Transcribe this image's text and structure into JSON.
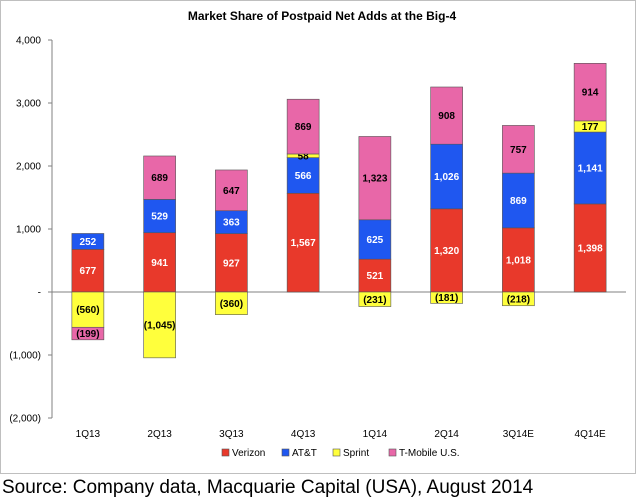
{
  "chart_data": {
    "type": "bar",
    "stacked": true,
    "title": "Market Share of Postpaid Net Adds at the Big-4",
    "categories": [
      "1Q13",
      "2Q13",
      "3Q13",
      "4Q13",
      "1Q14",
      "2Q14",
      "3Q14E",
      "4Q14E"
    ],
    "ylim": [
      -2000,
      4000
    ],
    "yticks": [
      -2000,
      -1000,
      0,
      1000,
      2000,
      3000,
      4000
    ],
    "ytick_labels": [
      "(2,000)",
      "(1,000)",
      "-",
      "1,000",
      "2,000",
      "3,000",
      "4,000"
    ],
    "grid": false,
    "legend_position": "bottom",
    "series": [
      {
        "name": "Verizon",
        "color": "#e8392b",
        "label_color": "#ffffff",
        "values": [
          677,
          941,
          927,
          1567,
          521,
          1320,
          1018,
          1398
        ],
        "labels": [
          "677",
          "941",
          "927",
          "1,567",
          "521",
          "1,320",
          "1,018",
          "1,398"
        ]
      },
      {
        "name": "AT&T",
        "color": "#1f57f0",
        "label_color": "#ffffff",
        "values": [
          252,
          529,
          363,
          566,
          625,
          1026,
          869,
          1141
        ],
        "labels": [
          "252",
          "529",
          "363",
          "566",
          "625",
          "1,026",
          "869",
          "1,141"
        ]
      },
      {
        "name": "Sprint",
        "color": "#ffff3c",
        "label_color": "#000000",
        "values": [
          -560,
          -1045,
          -360,
          58,
          -231,
          -181,
          -218,
          177
        ],
        "labels": [
          "(560)",
          "(1,045)",
          "(360)",
          "58",
          "(231)",
          "(181)",
          "(218)",
          "177"
        ]
      },
      {
        "name": "T-Mobile U.S.",
        "color": "#e867a8",
        "label_color": "#000000",
        "values": [
          -199,
          689,
          647,
          869,
          1323,
          908,
          757,
          914
        ],
        "labels": [
          "(199)",
          "689",
          "647",
          "869",
          "1,323",
          "908",
          "757",
          "914"
        ]
      }
    ]
  },
  "source_note": "Source: Company data, Macquarie Capital (USA), August 2014"
}
